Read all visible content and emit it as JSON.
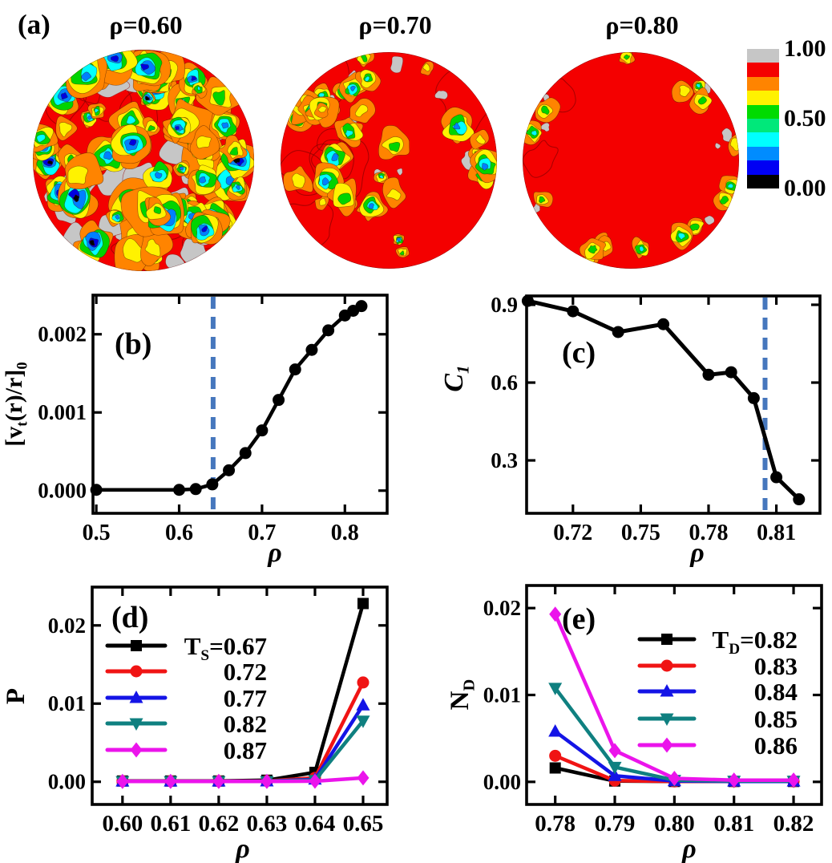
{
  "panel_a": {
    "label": "(a)",
    "plots": [
      {
        "title": "ρ=0.60",
        "texture": "dense-mixed"
      },
      {
        "title": "ρ=0.70",
        "texture": "medium-edge"
      },
      {
        "title": "ρ=0.80",
        "texture": "sparse-rim"
      }
    ],
    "colorbar": {
      "tick_labels": [
        "1.00",
        "0.50",
        "0.00"
      ],
      "colors": [
        "#c6c6c6",
        "#f40000",
        "#ff8400",
        "#fff200",
        "#00db00",
        "#00e87a",
        "#00ffff",
        "#008cff",
        "#0000f4",
        "#000000"
      ]
    }
  },
  "chart_data": [
    {
      "type": "line",
      "panel": "(b)",
      "xlabel": "ρ",
      "ylabel": "[v_t(r)/r]_0",
      "x": [
        0.5,
        0.6,
        0.62,
        0.64,
        0.66,
        0.68,
        0.7,
        0.72,
        0.74,
        0.76,
        0.78,
        0.8,
        0.81,
        0.82
      ],
      "y": [
        1e-05,
        1e-05,
        2e-05,
        8e-05,
        0.00026,
        0.00048,
        0.00077,
        0.00116,
        0.00155,
        0.0018,
        0.00205,
        0.00224,
        0.0023,
        0.00236
      ],
      "xticks": [
        0.5,
        0.6,
        0.7,
        0.8
      ],
      "xtick_labels": [
        "0.5",
        "0.6",
        "0.7",
        "0.8"
      ],
      "yticks": [
        0.0,
        0.001,
        0.002
      ],
      "ytick_labels": [
        "0.000",
        "0.001",
        "0.002"
      ],
      "xlim": [
        0.496,
        0.851
      ],
      "ylim": [
        -0.00029,
        0.0025
      ],
      "dashed_line_x": 0.641,
      "dashed_line_color": "#4677bd",
      "line_color": "#000000",
      "marker": "circle",
      "grid": false
    },
    {
      "type": "line",
      "panel": "(c)",
      "xlabel": "ρ",
      "ylabel": "C_1",
      "x": [
        0.7,
        0.72,
        0.74,
        0.76,
        0.78,
        0.79,
        0.8,
        0.81,
        0.82
      ],
      "y": [
        0.915,
        0.875,
        0.795,
        0.825,
        0.63,
        0.64,
        0.54,
        0.235,
        0.15
      ],
      "xticks": [
        0.72,
        0.75,
        0.78,
        0.81
      ],
      "xtick_labels": [
        "0.72",
        "0.75",
        "0.78",
        "0.81"
      ],
      "yticks": [
        0.3,
        0.6,
        0.9
      ],
      "ytick_labels": [
        "0.3",
        "0.6",
        "0.9"
      ],
      "xlim": [
        0.6995,
        0.8293
      ],
      "ylim": [
        0.096,
        0.934
      ],
      "dashed_line_x": 0.805,
      "dashed_line_color": "#4677bd",
      "line_color": "#000000",
      "marker": "circle",
      "grid": false
    },
    {
      "type": "line",
      "panel": "(d)",
      "xlabel": "ρ",
      "ylabel": "P",
      "x": [
        0.6,
        0.61,
        0.62,
        0.63,
        0.64,
        0.65
      ],
      "series": [
        {
          "name": "T_S=0.67",
          "color": "#000000",
          "marker": "square",
          "values": [
            0.0001,
            0.0001,
            0.0001,
            0.0002,
            0.0012,
            0.0228
          ]
        },
        {
          "name": "0.72",
          "color": "#f01414",
          "marker": "circle",
          "values": [
            8e-05,
            8e-05,
            8e-05,
            0.0001,
            0.0005,
            0.0127
          ]
        },
        {
          "name": "0.77",
          "color": "#1414e6",
          "marker": "triangle-up",
          "values": [
            6e-05,
            6e-05,
            6e-05,
            8e-05,
            0.0003,
            0.0098
          ]
        },
        {
          "name": "0.82",
          "color": "#0f8080",
          "marker": "triangle-down",
          "values": [
            5e-05,
            5e-05,
            5e-05,
            6e-05,
            0.0002,
            0.0078
          ]
        },
        {
          "name": "0.87",
          "color": "#eb14eb",
          "marker": "diamond",
          "values": [
            5e-05,
            5e-05,
            5e-05,
            5e-05,
            8e-05,
            0.0005
          ]
        }
      ],
      "xticks": [
        0.6,
        0.61,
        0.62,
        0.63,
        0.64,
        0.65
      ],
      "xtick_labels": [
        "0.60",
        "0.61",
        "0.62",
        "0.63",
        "0.64",
        "0.65"
      ],
      "yticks": [
        0.0,
        0.01,
        0.02
      ],
      "ytick_labels": [
        "0.00",
        "0.01",
        "0.02"
      ],
      "xlim": [
        0.5937,
        0.655
      ],
      "ylim": [
        -0.0029,
        0.0249
      ],
      "legend_position": "top-left",
      "grid": false
    },
    {
      "type": "line",
      "panel": "(e)",
      "xlabel": "ρ",
      "ylabel": "N_D",
      "x": [
        0.78,
        0.79,
        0.8,
        0.81,
        0.82
      ],
      "series": [
        {
          "name": "T_D=0.82",
          "color": "#000000",
          "marker": "square",
          "values": [
            0.0016,
            0.0001,
            5e-05,
            5e-05,
            5e-05
          ]
        },
        {
          "name": "0.83",
          "color": "#f01414",
          "marker": "circle",
          "values": [
            0.003,
            0.00015,
            5e-05,
            5e-05,
            5e-05
          ]
        },
        {
          "name": "0.84",
          "color": "#1414e6",
          "marker": "triangle-up",
          "values": [
            0.0058,
            0.0007,
            0.0001,
            6e-05,
            6e-05
          ]
        },
        {
          "name": "0.85",
          "color": "#0f8080",
          "marker": "triangle-down",
          "values": [
            0.0108,
            0.0017,
            0.0002,
            0.0001,
            0.0001
          ]
        },
        {
          "name": "0.86",
          "color": "#eb14eb",
          "marker": "diamond",
          "values": [
            0.0193,
            0.0036,
            0.0004,
            0.0002,
            0.0002
          ]
        }
      ],
      "xticks": [
        0.78,
        0.79,
        0.8,
        0.81,
        0.82
      ],
      "xtick_labels": [
        "0.78",
        "0.79",
        "0.80",
        "0.81",
        "0.82"
      ],
      "yticks": [
        0.0,
        0.01,
        0.02
      ],
      "ytick_labels": [
        "0.00",
        "0.01",
        "0.02"
      ],
      "xlim": [
        0.7752,
        0.8247
      ],
      "ylim": [
        -0.0026,
        0.0226
      ],
      "legend_position": "top-right",
      "grid": false
    }
  ]
}
